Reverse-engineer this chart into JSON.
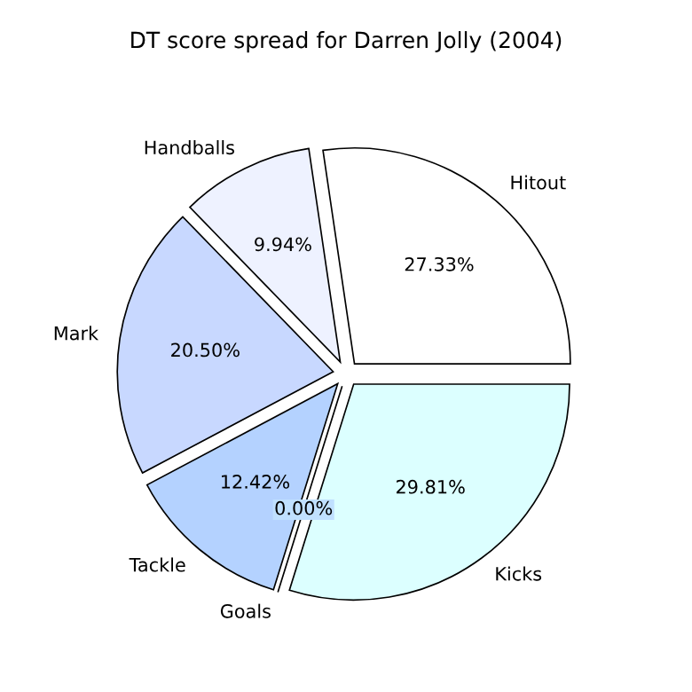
{
  "chart_data": {
    "type": "pie",
    "title": "DT score spread for Darren Jolly (2004)",
    "categories": [
      "Hitout",
      "Handballs",
      "Mark",
      "Tackle",
      "Goals",
      "Kicks"
    ],
    "values": [
      27.33,
      9.94,
      20.5,
      12.42,
      0.0,
      29.81
    ],
    "value_labels": [
      "27.33%",
      "9.94%",
      "20.50%",
      "12.42%",
      "0.00%",
      "29.81%"
    ],
    "colors": [
      "#ffffff",
      "#eef2ff",
      "#c8d8ff",
      "#b4d2ff",
      "#c0e0ff",
      "#dcffff"
    ],
    "legend": false
  }
}
